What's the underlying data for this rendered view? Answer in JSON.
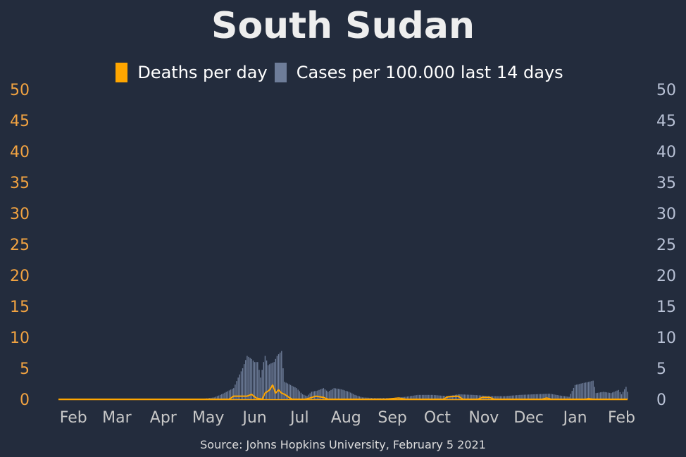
{
  "chart_data": {
    "type": "bar",
    "title": "South Sudan",
    "source": "Source: Johns Hopkins University, February 5 2021",
    "colors": {
      "background": "#232c3d",
      "deaths": "#ffa600",
      "cases": "#6e7d99",
      "left_ticks": "#f2a341",
      "right_ticks": "#b9c2d6",
      "title": "#eeeeee"
    },
    "legend": {
      "placement": "top-center",
      "deaths_label": "Deaths per day",
      "cases_label": "Cases per 100.000 last 14 days"
    },
    "ylim_left": [
      0,
      50
    ],
    "ylim_right": [
      0,
      50
    ],
    "yticks": [
      "0",
      "5",
      "10",
      "15",
      "20",
      "25",
      "30",
      "35",
      "40",
      "45",
      "50"
    ],
    "xlim": [
      "2020-01-22",
      "2021-02-05"
    ],
    "xticks": [
      {
        "label": "Feb",
        "date": "2020-02-01"
      },
      {
        "label": "Mar",
        "date": "2020-03-01"
      },
      {
        "label": "Apr",
        "date": "2020-04-01"
      },
      {
        "label": "May",
        "date": "2020-05-01"
      },
      {
        "label": "Jun",
        "date": "2020-06-01"
      },
      {
        "label": "Jul",
        "date": "2020-07-01"
      },
      {
        "label": "Aug",
        "date": "2020-08-01"
      },
      {
        "label": "Sep",
        "date": "2020-09-01"
      },
      {
        "label": "Oct",
        "date": "2020-10-01"
      },
      {
        "label": "Nov",
        "date": "2020-11-01"
      },
      {
        "label": "Dec",
        "date": "2020-12-01"
      },
      {
        "label": "Jan",
        "date": "2021-01-01"
      },
      {
        "label": "Feb",
        "date": "2021-02-01"
      }
    ],
    "series": [
      {
        "name": "Cases per 100.000 last 14 days",
        "kind": "bar",
        "points": [
          [
            "2020-04-28",
            0.1
          ],
          [
            "2020-05-05",
            0.3
          ],
          [
            "2020-05-10",
            0.8
          ],
          [
            "2020-05-14",
            1.3
          ],
          [
            "2020-05-18",
            1.8
          ],
          [
            "2020-05-21",
            3.5
          ],
          [
            "2020-05-24",
            5.0
          ],
          [
            "2020-05-27",
            7.0
          ],
          [
            "2020-05-30",
            6.5
          ],
          [
            "2020-06-01",
            6.0
          ],
          [
            "2020-06-03",
            6.0
          ],
          [
            "2020-06-05",
            3.5
          ],
          [
            "2020-06-07",
            6.0
          ],
          [
            "2020-06-08",
            7.0
          ],
          [
            "2020-06-10",
            5.5
          ],
          [
            "2020-06-12",
            5.8
          ],
          [
            "2020-06-14",
            6.0
          ],
          [
            "2020-06-16",
            7.0
          ],
          [
            "2020-06-19",
            7.8
          ],
          [
            "2020-06-20",
            5.0
          ],
          [
            "2020-06-21",
            2.8
          ],
          [
            "2020-06-25",
            2.3
          ],
          [
            "2020-06-29",
            1.8
          ],
          [
            "2020-07-03",
            0.8
          ],
          [
            "2020-07-06",
            0.5
          ],
          [
            "2020-07-09",
            1.2
          ],
          [
            "2020-07-13",
            1.4
          ],
          [
            "2020-07-17",
            1.8
          ],
          [
            "2020-07-20",
            1.2
          ],
          [
            "2020-07-24",
            1.8
          ],
          [
            "2020-07-29",
            1.6
          ],
          [
            "2020-08-03",
            1.2
          ],
          [
            "2020-08-07",
            0.7
          ],
          [
            "2020-08-12",
            0.3
          ],
          [
            "2020-08-20",
            0.2
          ],
          [
            "2020-09-01",
            0.2
          ],
          [
            "2020-09-10",
            0.4
          ],
          [
            "2020-09-18",
            0.7
          ],
          [
            "2020-09-28",
            0.7
          ],
          [
            "2020-10-08",
            0.5
          ],
          [
            "2020-10-15",
            0.8
          ],
          [
            "2020-10-25",
            0.7
          ],
          [
            "2020-11-05",
            0.5
          ],
          [
            "2020-11-15",
            0.5
          ],
          [
            "2020-11-25",
            0.7
          ],
          [
            "2020-12-05",
            0.8
          ],
          [
            "2020-12-15",
            0.9
          ],
          [
            "2020-12-22",
            0.6
          ],
          [
            "2020-12-28",
            0.4
          ],
          [
            "2021-01-01",
            2.3
          ],
          [
            "2021-01-06",
            2.6
          ],
          [
            "2021-01-10",
            2.8
          ],
          [
            "2021-01-13",
            3.0
          ],
          [
            "2021-01-15",
            1.0
          ],
          [
            "2021-01-20",
            1.2
          ],
          [
            "2021-01-25",
            1.0
          ],
          [
            "2021-01-30",
            1.5
          ],
          [
            "2021-02-01",
            0.8
          ],
          [
            "2021-02-04",
            2.0
          ],
          [
            "2021-02-05",
            1.2
          ]
        ]
      },
      {
        "name": "Deaths per day",
        "kind": "line",
        "points": [
          [
            "2020-01-22",
            0
          ],
          [
            "2020-05-15",
            0
          ],
          [
            "2020-05-18",
            0.5
          ],
          [
            "2020-05-27",
            0.5
          ],
          [
            "2020-05-30",
            0.8
          ],
          [
            "2020-06-02",
            0.2
          ],
          [
            "2020-06-06",
            0.0
          ],
          [
            "2020-06-08",
            1.0
          ],
          [
            "2020-06-11",
            1.5
          ],
          [
            "2020-06-13",
            2.3
          ],
          [
            "2020-06-15",
            1.0
          ],
          [
            "2020-06-17",
            1.5
          ],
          [
            "2020-06-19",
            1.0
          ],
          [
            "2020-06-21",
            0.8
          ],
          [
            "2020-06-24",
            0.3
          ],
          [
            "2020-06-26",
            0.0
          ],
          [
            "2020-07-05",
            0.0
          ],
          [
            "2020-07-08",
            0.2
          ],
          [
            "2020-07-12",
            0.5
          ],
          [
            "2020-07-17",
            0.3
          ],
          [
            "2020-07-20",
            0.0
          ],
          [
            "2020-08-28",
            0.0
          ],
          [
            "2020-09-05",
            0.2
          ],
          [
            "2020-09-10",
            0.0
          ],
          [
            "2020-10-05",
            0.0
          ],
          [
            "2020-10-08",
            0.4
          ],
          [
            "2020-10-15",
            0.5
          ],
          [
            "2020-10-18",
            0.0
          ],
          [
            "2020-10-28",
            0.0
          ],
          [
            "2020-10-31",
            0.3
          ],
          [
            "2020-11-05",
            0.3
          ],
          [
            "2020-11-08",
            0.0
          ],
          [
            "2020-12-10",
            0.0
          ],
          [
            "2020-12-13",
            0.2
          ],
          [
            "2020-12-16",
            0.0
          ],
          [
            "2021-01-08",
            0.0
          ],
          [
            "2021-01-10",
            0.1
          ],
          [
            "2021-01-13",
            0.0
          ],
          [
            "2021-02-05",
            0.0
          ]
        ]
      }
    ]
  }
}
